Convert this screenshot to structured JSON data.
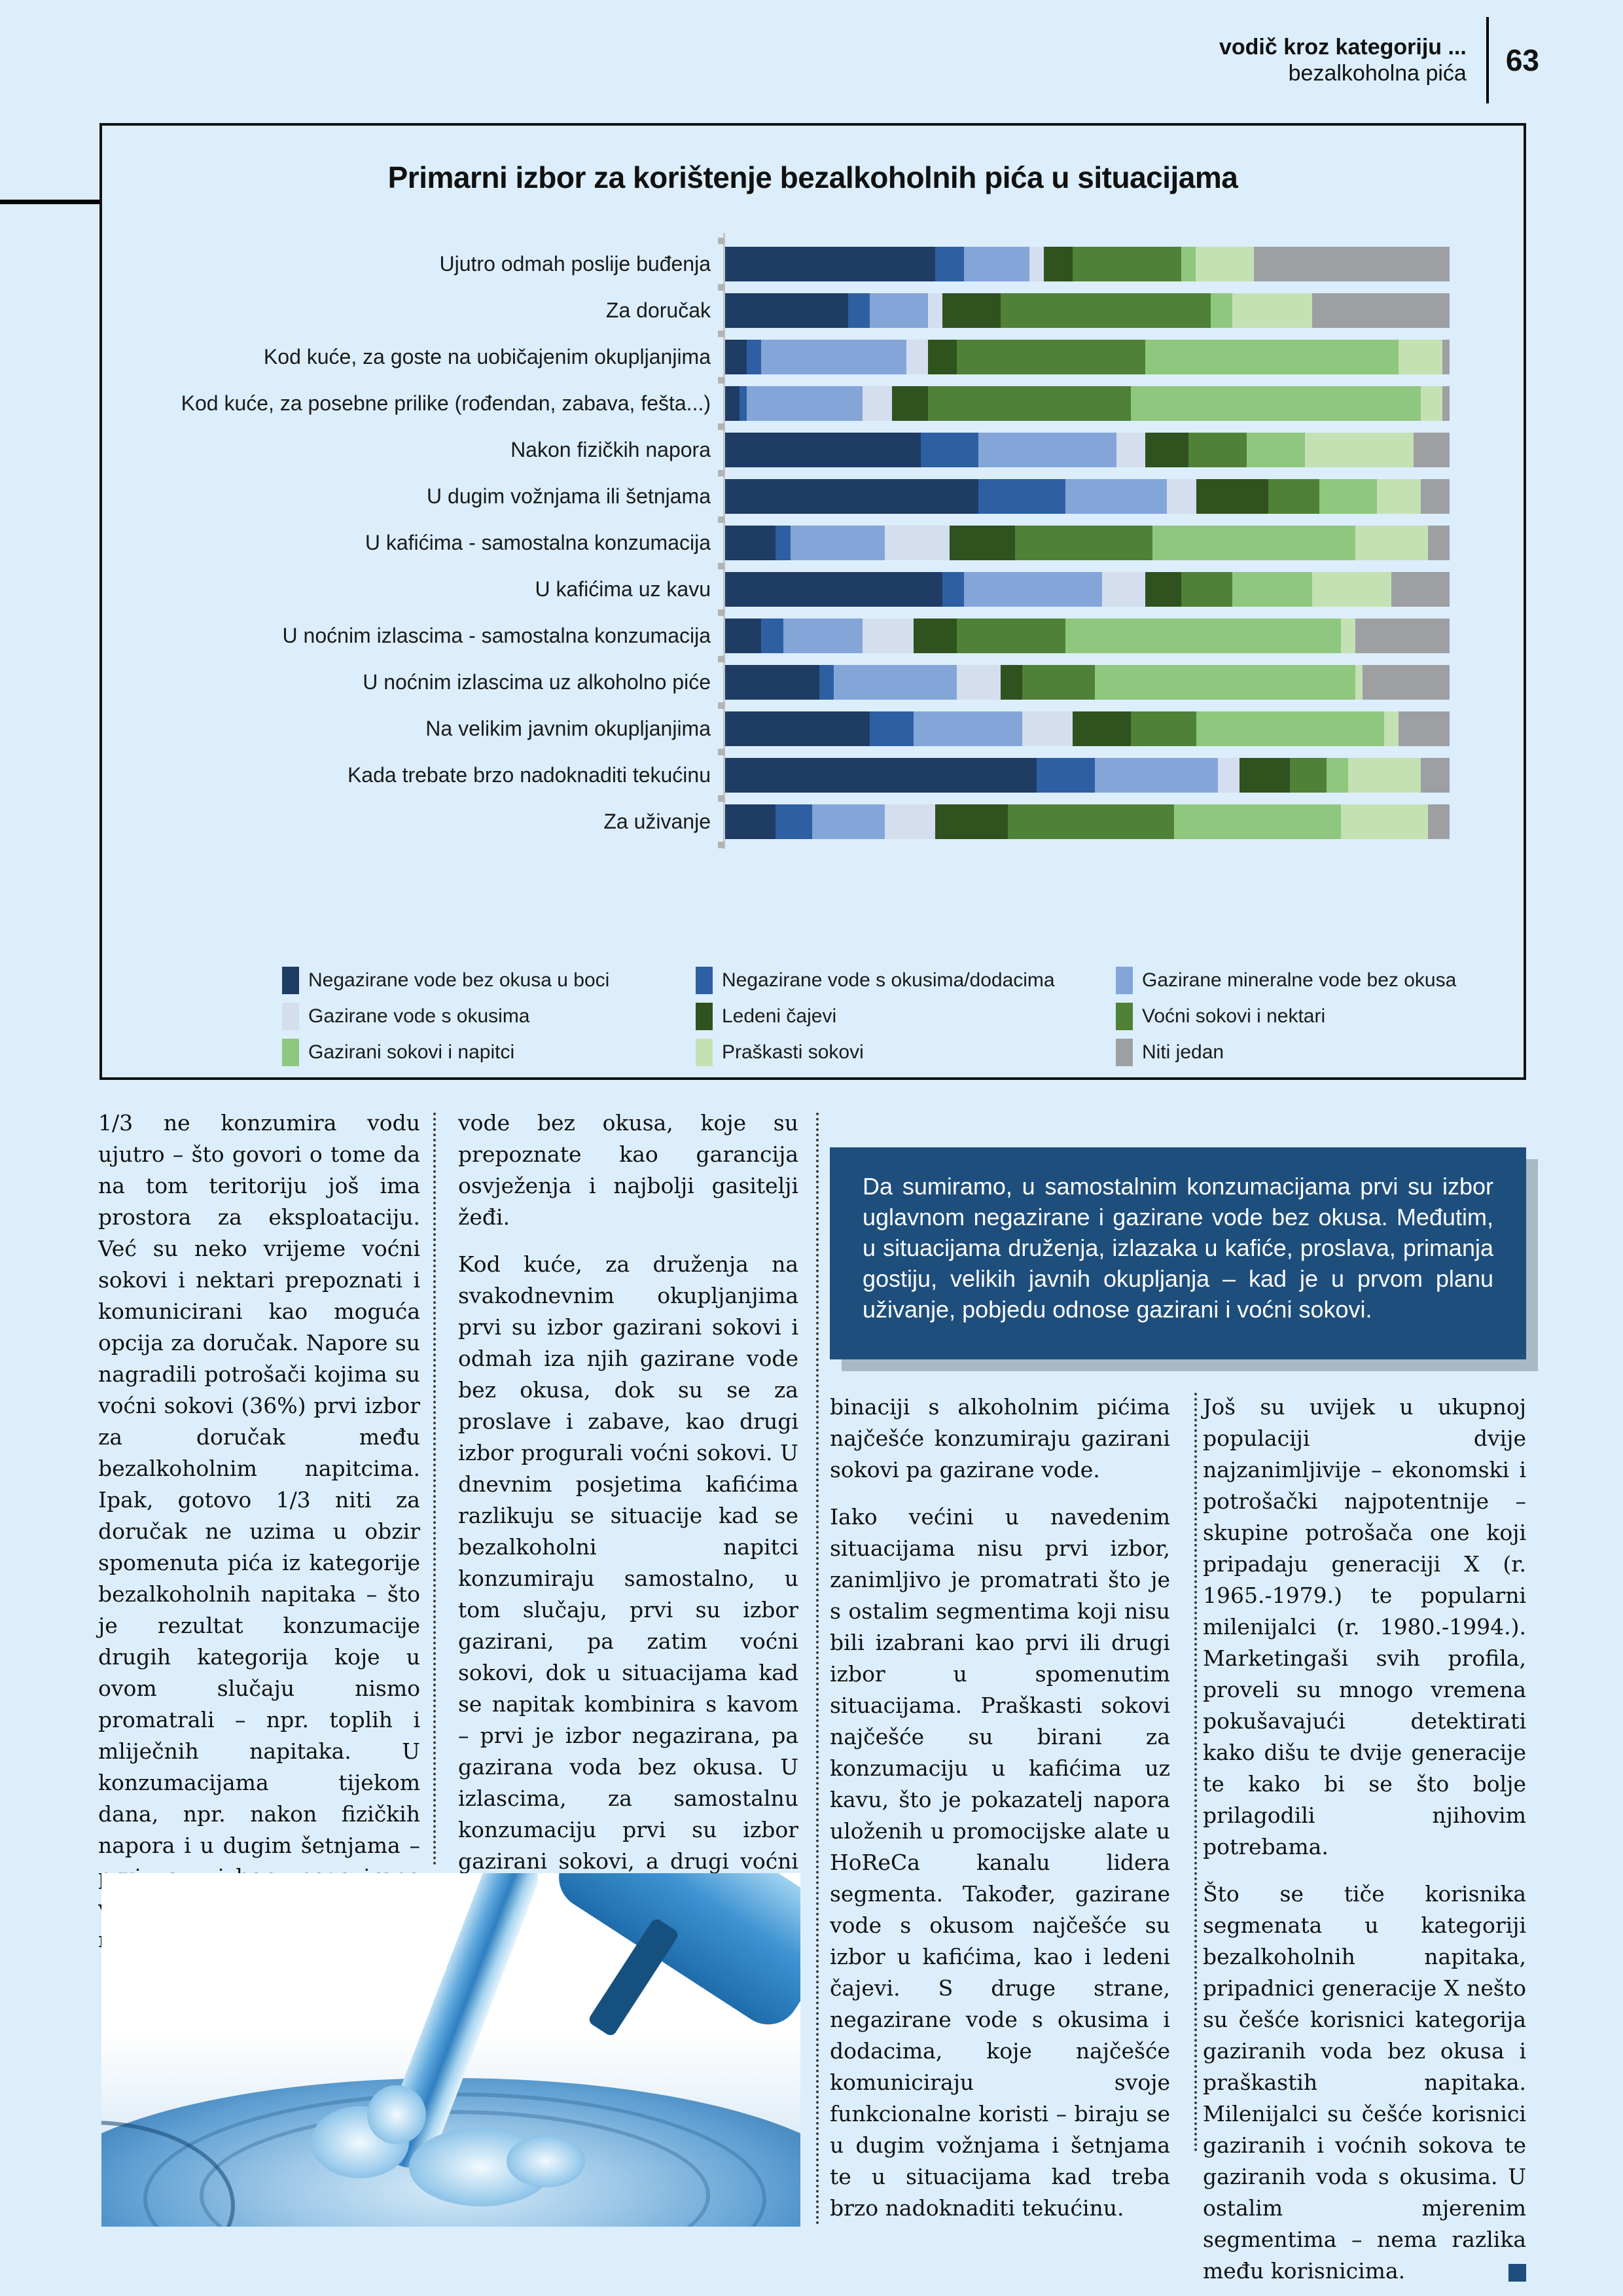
{
  "header": {
    "kicker_line1": "vodič kroz kategoriju ...",
    "kicker_line2": "bezalkoholna pića",
    "page_number": "63"
  },
  "chart_data": {
    "type": "bar",
    "stacked": true,
    "orientation": "horizontal",
    "title": "Primarni izbor za korištenje bezalkoholnih pića u situacijama",
    "unit": "percent of respondents (estimated from bar lengths)",
    "xlim": [
      0,
      100
    ],
    "grid": false,
    "legend_position": "bottom",
    "categories": [
      "Ujutro odmah poslije buđenja",
      "Za doručak",
      "Kod kuće, za goste na uobičajenim okupljanjima",
      "Kod kuće, za posebne prilike (rođendan, zabava, fešta...)",
      "Nakon fizičkih napora",
      "U dugim vožnjama ili šetnjama",
      "U kafićima - samostalna konzumacija",
      "U kafićima uz kavu",
      "U noćnim izlascima - samostalna konzumacija",
      "U noćnim izlascima uz alkoholno piće",
      "Na velikim javnim okupljanjima",
      "Kada trebate brzo nadoknaditi tekućinu",
      "Za uživanje"
    ],
    "series": [
      {
        "name": "Negazirane vode bez okusa u boci",
        "color": "#1e3c64",
        "values": [
          29,
          17,
          3,
          2,
          27,
          35,
          7,
          30,
          5,
          13,
          20,
          43,
          7
        ]
      },
      {
        "name": "Negazirane vode s okusima/dodacima",
        "color": "#2e5fa3",
        "values": [
          4,
          3,
          2,
          1,
          8,
          12,
          2,
          3,
          3,
          2,
          6,
          8,
          5
        ]
      },
      {
        "name": "Gazirane mineralne vode bez okusa",
        "color": "#84a5d8",
        "values": [
          9,
          8,
          20,
          16,
          19,
          14,
          13,
          19,
          11,
          17,
          15,
          17,
          10
        ]
      },
      {
        "name": "Gazirane vode s okusima",
        "color": "#d4deee",
        "values": [
          2,
          2,
          3,
          4,
          4,
          4,
          9,
          6,
          7,
          6,
          7,
          3,
          7
        ]
      },
      {
        "name": "Ledeni čajevi",
        "color": "#30521f",
        "values": [
          4,
          8,
          4,
          5,
          6,
          10,
          9,
          5,
          6,
          3,
          8,
          7,
          10
        ]
      },
      {
        "name": "Voćni sokovi i nektari",
        "color": "#4f8137",
        "values": [
          15,
          29,
          26,
          28,
          8,
          7,
          19,
          7,
          15,
          10,
          9,
          5,
          23
        ]
      },
      {
        "name": "Gazirani sokovi i napitci",
        "color": "#8fc77e",
        "values": [
          2,
          3,
          35,
          40,
          8,
          8,
          28,
          11,
          38,
          36,
          26,
          3,
          23
        ]
      },
      {
        "name": "Praškasti sokovi",
        "color": "#c4e1b4",
        "values": [
          8,
          11,
          6,
          3,
          15,
          6,
          10,
          11,
          2,
          1,
          2,
          10,
          12
        ]
      },
      {
        "name": "Niti jedan",
        "color": "#9d9fa2",
        "values": [
          27,
          19,
          1,
          1,
          5,
          4,
          3,
          8,
          13,
          12,
          7,
          4,
          3
        ]
      }
    ]
  },
  "article": {
    "col1": "1/3 ne konzumira vodu ujutro – što govori o tome da na tom teritoriju još ima prostora za eksploataciju. Već su neko vrijeme voćni sokovi i nektari prepoznati i komunicirani kao moguća opcija za doručak. Napore su nagradili potrošači kojima su voćni sokovi (36%) prvi izbor za doručak među bezalkoholnim napitcima. Ipak, gotovo 1/3 niti za doručak ne uzima u obzir spomenuta pića iz kategorije bezalkoholnih napitaka – što je rezultat konzumacije drugih kategorija koje u ovom slučaju nismo promatrali – npr. toplih i mliječnih napitaka. U konzumacijama tijekom dana, npr. nakon fizičkih napora i u dugim šetnjama – prvi su izbor negazirane vode bez okusa, a odmah iza njih i gazirane",
    "col2_p1": "vode bez okusa, koje su prepoznate kao garancija osvježenja i najbolji gasitelji žeđi.",
    "col2_p2": "Kod kuće, za druženja na svakodnevnim okupljanjima prvi su izbor gazirani sokovi i odmah iza njih gazirane vode bez okusa, dok su se za proslave i zabave, kao drugi izbor progurali voćni sokovi. U dnevnim posjetima kafićima razlikuju se situacije kad se bezalkoholni napitci konzumiraju samostalno, u tom slučaju, prvi su izbor gazirani, pa zatim voćni sokovi, dok u situacijama kad se napitak kombinira s kavom – prvi je izbor negazirana, pa gazirana voda bez okusa. U izlascima, za samostalnu konzumaciju prvi su izbor gazirani sokovi, a drugi voćni sokovi, dok se u kom-",
    "col3_p1": "binaciji s alkoholnim pićima najčešće konzumiraju gazirani sokovi pa gazirane vode.",
    "col3_p2": "Iako većini u navedenim situacijama nisu prvi izbor, zanimljivo je promatrati što je s ostalim segmentima koji nisu bili izabrani kao prvi ili drugi izbor u spomenutim situacijama. Praškasti sokovi najčešće su birani za konzumaciju u kafićima uz kavu, što je pokazatelj napora uloženih u promocijske alate u HoReCa kanalu lidera segmenta. Također, gazirane vode s okusom najčešće su izbor u kafićima, kao i ledeni čajevi. S druge strane, negazirane vode s okusima i dodacima, koje najčešće komuniciraju svoje funkcionalne koristi – biraju se u dugim vožnjama i šetnjama te u situacijama kad treba brzo nadoknaditi tekućinu.",
    "col4_p1": "Još su uvijek u ukupnoj populaciji dvije najzanimljivije – ekonomski i potrošački najpotentnije – skupine potrošača one koji pripadaju generaciji X (r. 1965.-1979.) te popularni milenijalci (r. 1980.-1994.). Marketingaši svih profila, proveli su mnogo vremena pokušavajući detektirati kako dišu te dvije generacije te kako bi se što bolje prilagodili njihovim potrebama.",
    "col4_p2": "Što se tiče korisnika segmenata u kategoriji bezalkoholnih napitaka, pripadnici generacije X nešto su češće korisnici kategorija gaziranih voda bez okusa i praškastih napitaka. Milenijalci su češće korisnici gaziranih i voćnih sokova te gaziranih voda s okusima. U ostalim mjerenim segmentima – nema razlika među korisnicima.",
    "callout": "Da sumiramo, u samostalnim konzumacijama prvi su izbor uglavnom negazirane i gazirane vode bez okusa. Međutim, u situacijama druženja, izlazaka u kafiće, proslava, primanja gostiju, velikih javnih okupljanja – kad je u prvom planu uživanje, pobjedu odnose gazirani i voćni sokovi."
  },
  "colors": {
    "page_background": "#dceefb",
    "panel_border": "#121212",
    "callout_background": "#1e4e7c",
    "callout_shadow": "#a9bac7",
    "callout_text": "#ffffff"
  }
}
